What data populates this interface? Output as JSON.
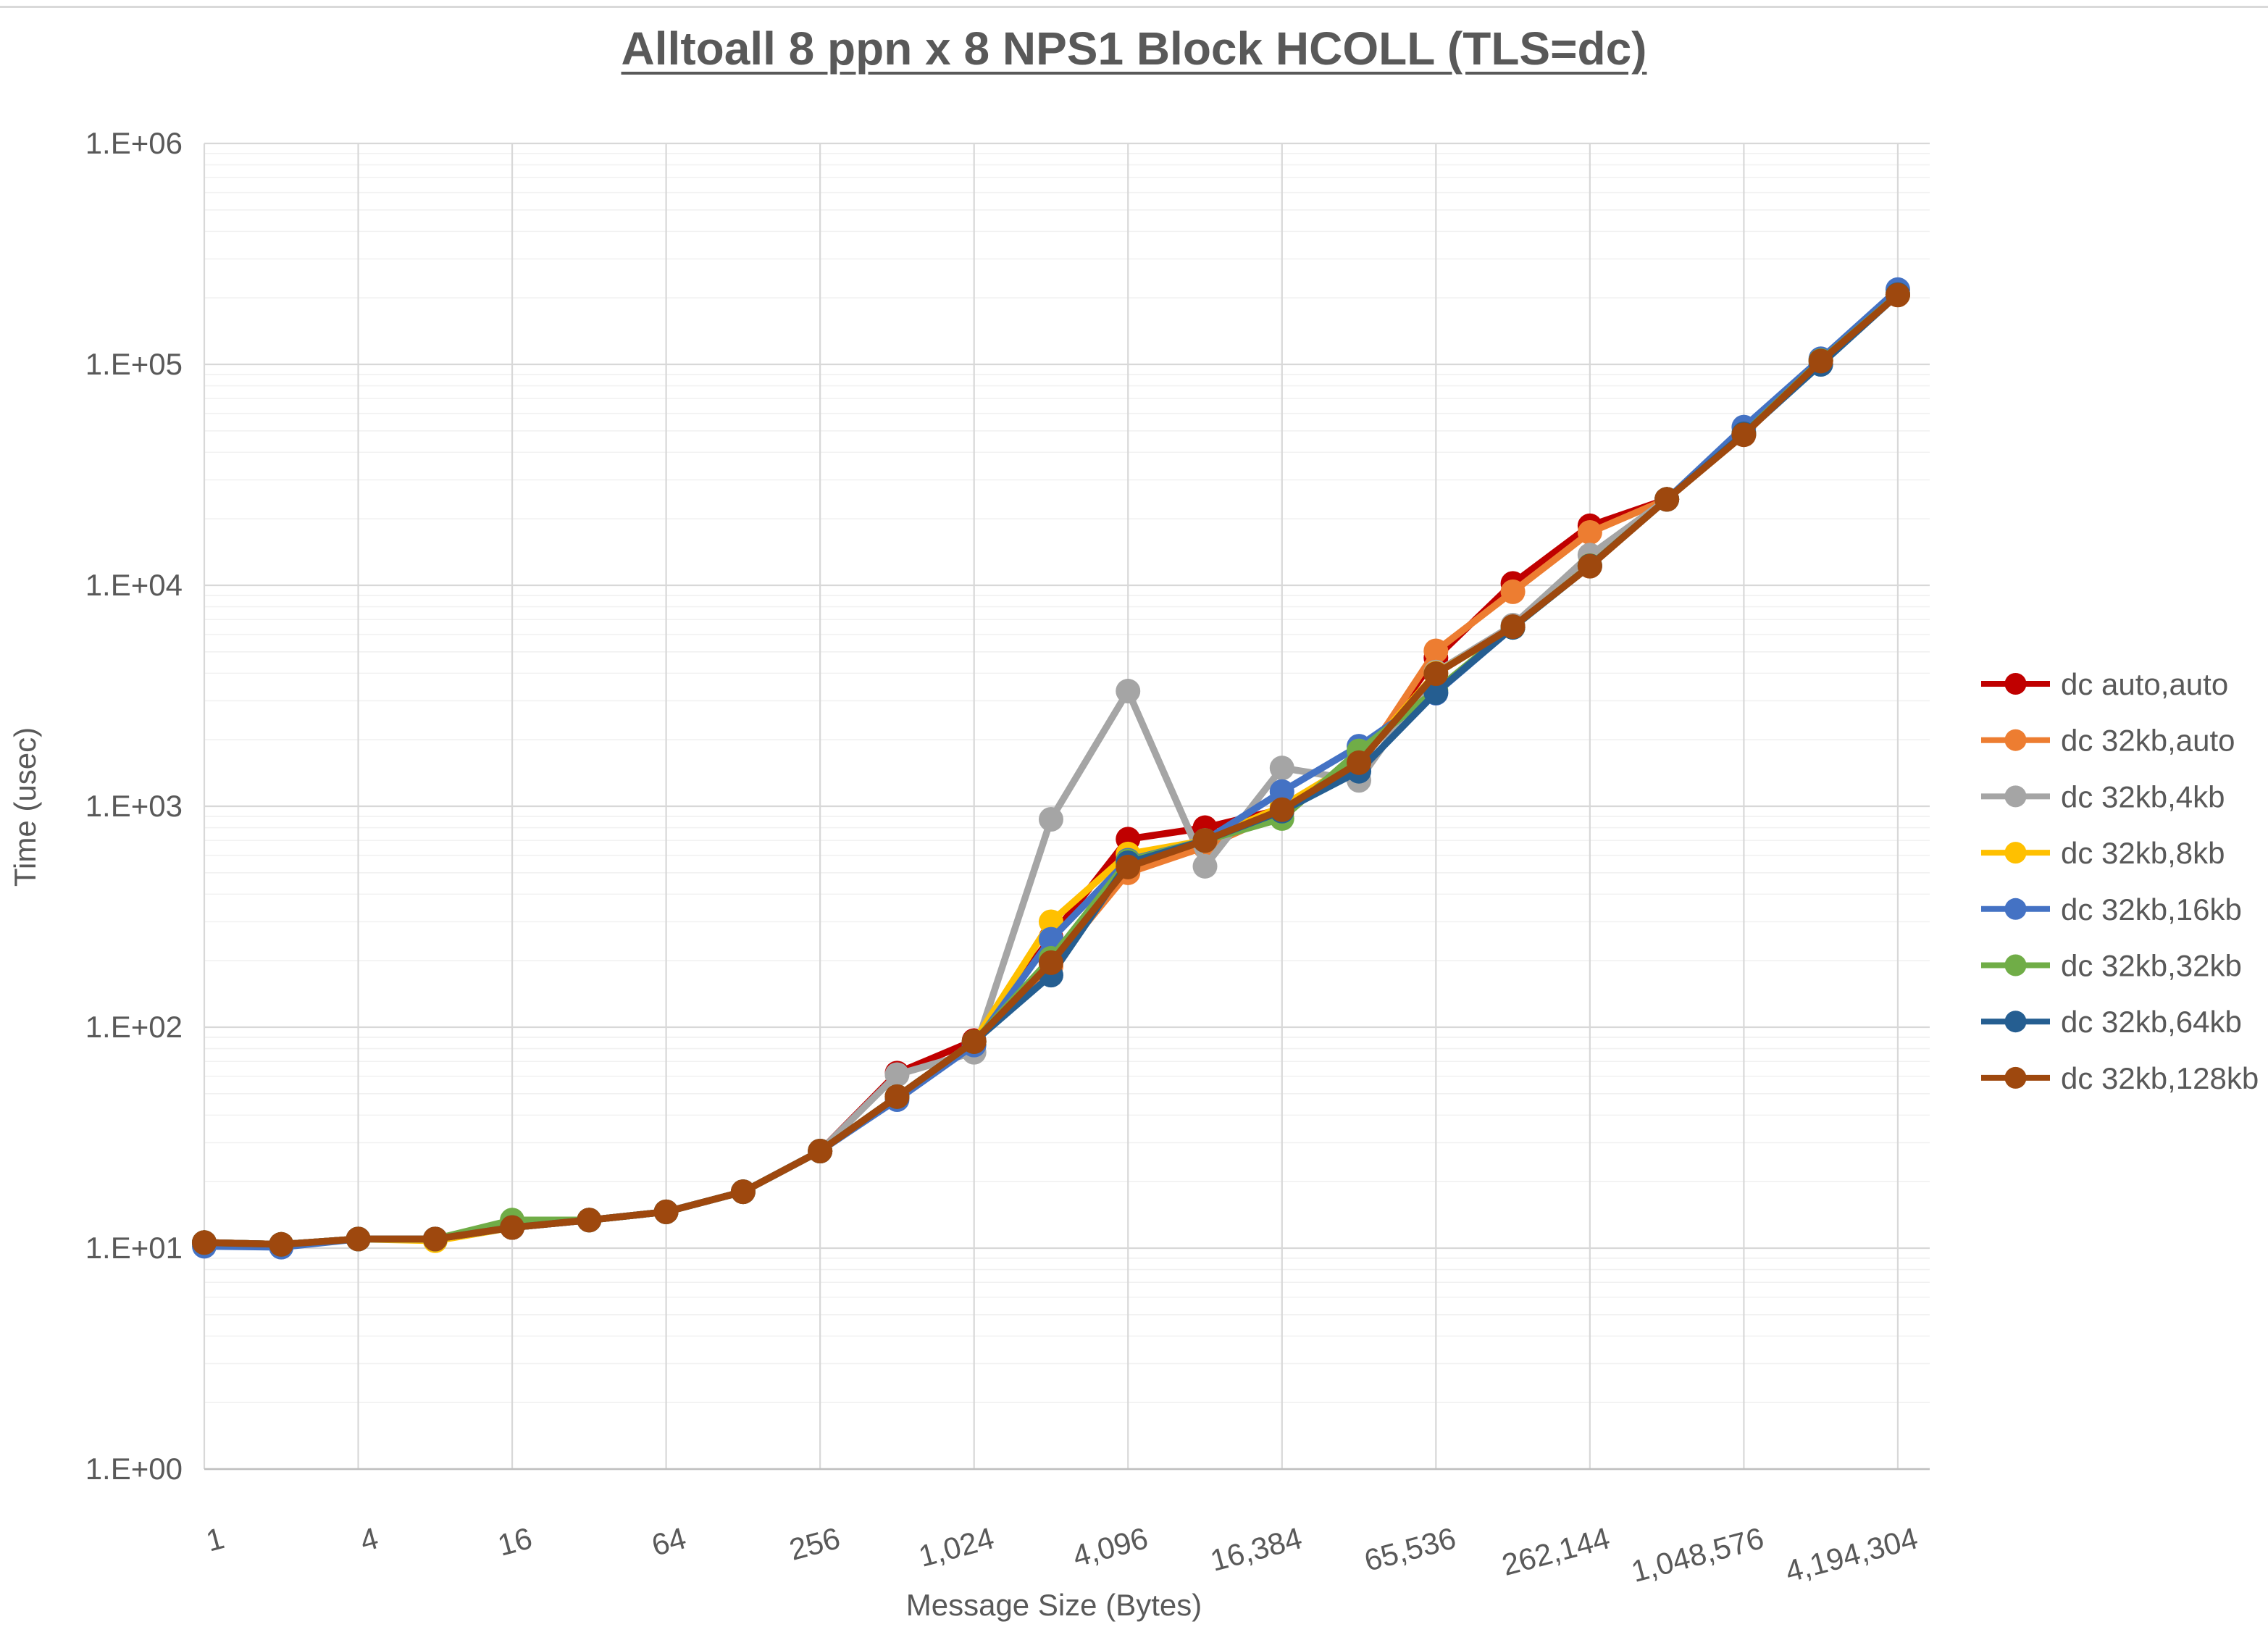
{
  "title": "Alltoall 8 ppn x 8 NPS1 Block HCOLL (TLS=dc)",
  "axes": {
    "x_label": "Message Size (Bytes)",
    "y_label": "Time (usec)",
    "y_tick_labels": [
      "1.E+00",
      "1.E+01",
      "1.E+02",
      "1.E+03",
      "1.E+04",
      "1.E+05",
      "1.E+06"
    ],
    "x_tick_labels": [
      "1",
      "4",
      "16",
      "64",
      "256",
      "1,024",
      "4,096",
      "16,384",
      "65,536",
      "262,144",
      "1,048,576",
      "4,194,304"
    ]
  },
  "chart_data": {
    "type": "line",
    "title": "Alltoall 8 ppn x 8 NPS1 Block HCOLL (TLS=dc)",
    "xlabel": "Message Size (Bytes)",
    "ylabel": "Time (usec)",
    "x_scale": "log2",
    "y_scale": "log10",
    "xlim": [
      1,
      4194304
    ],
    "ylim": [
      1,
      1000000
    ],
    "grid": true,
    "legend_position": "right",
    "x": [
      1,
      2,
      4,
      8,
      16,
      32,
      64,
      128,
      256,
      512,
      1024,
      2048,
      4096,
      8192,
      16384,
      32768,
      65536,
      131072,
      262144,
      524288,
      1048576,
      2097152,
      4194304
    ],
    "series": [
      {
        "name": "dc auto,auto",
        "color": "#C00000",
        "values": [
          10.6,
          10.4,
          11.0,
          11.0,
          12.4,
          13.4,
          14.6,
          18,
          27.5,
          62,
          87,
          255,
          710,
          800,
          970,
          1560,
          4700,
          10200,
          18600,
          24500,
          48700,
          104000,
          207000
        ]
      },
      {
        "name": "dc 32kb,auto",
        "color": "#ED7D31",
        "values": [
          10.6,
          10.4,
          11.0,
          11.0,
          12.4,
          13.4,
          14.6,
          18,
          27.5,
          48.5,
          86,
          188,
          500,
          655,
          940,
          1500,
          5050,
          9350,
          17350,
          24500,
          48500,
          104000,
          207000
        ]
      },
      {
        "name": "dc 32kb,4kb",
        "color": "#A5A5A5",
        "values": [
          10.6,
          10.4,
          11.0,
          11.0,
          12.4,
          13.4,
          14.6,
          18,
          27.5,
          61,
          77,
          873,
          3320,
          535,
          1490,
          1310,
          4050,
          6600,
          13700,
          24500,
          48500,
          104000,
          207000
        ]
      },
      {
        "name": "dc 32kb,8kb",
        "color": "#FFC000",
        "values": [
          10.6,
          10.4,
          11.0,
          10.8,
          12.4,
          13.4,
          14.6,
          18,
          27.5,
          48.5,
          86,
          300,
          608,
          700,
          1000,
          1620,
          4000,
          6450,
          12300,
          24500,
          48500,
          104000,
          207000
        ]
      },
      {
        "name": "dc 32kb,16kb",
        "color": "#4472C4",
        "values": [
          10.2,
          10.1,
          11.0,
          11.0,
          12.4,
          13.4,
          14.6,
          18,
          27.5,
          47,
          83,
          250,
          570,
          700,
          1165,
          1870,
          3250,
          6450,
          12250,
          24500,
          52000,
          106000,
          218000
        ]
      },
      {
        "name": "dc 32kb,32kb",
        "color": "#70AD47",
        "values": [
          10.6,
          10.4,
          11.0,
          11.0,
          13.4,
          13.4,
          14.6,
          18,
          27.5,
          48.5,
          86,
          205,
          565,
          700,
          880,
          1780,
          3350,
          6450,
          12250,
          24500,
          48500,
          104000,
          207000
        ]
      },
      {
        "name": "dc 32kb,64kb",
        "color": "#255E91",
        "values": [
          10.6,
          10.4,
          11.0,
          11.0,
          12.4,
          13.4,
          14.6,
          18,
          27.5,
          48.5,
          86,
          172,
          555,
          700,
          950,
          1440,
          3270,
          6450,
          12250,
          24500,
          48500,
          100000,
          207000
        ]
      },
      {
        "name": "dc 32kb,128kb",
        "color": "#9E480E",
        "values": [
          10.6,
          10.4,
          11.0,
          11.0,
          12.4,
          13.4,
          14.6,
          18,
          27.5,
          48.5,
          86,
          196,
          531,
          700,
          965,
          1575,
          3980,
          6500,
          12200,
          24500,
          48000,
          103500,
          206000
        ]
      }
    ]
  }
}
